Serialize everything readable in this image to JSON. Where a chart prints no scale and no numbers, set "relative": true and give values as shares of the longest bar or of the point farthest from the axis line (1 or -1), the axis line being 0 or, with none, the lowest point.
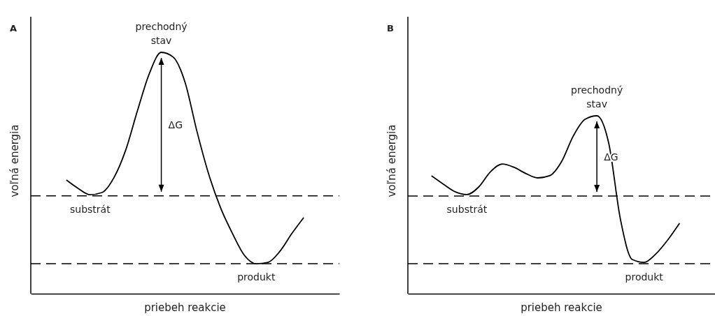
{
  "chart_data": [
    {
      "type": "line",
      "title": "A",
      "xlabel": "priebeh reakcie",
      "ylabel": "voľná energia",
      "relative": true,
      "categories": [
        null,
        null,
        null,
        null,
        null,
        null,
        null,
        null,
        null,
        null,
        null,
        null,
        null,
        null,
        null,
        null,
        null,
        null,
        null,
        null,
        null,
        null,
        null,
        null,
        null,
        null,
        null
      ],
      "series": [
        {
          "color": "#000000",
          "values": [
            null,
            null,
            null,
            0.471,
            0.436,
            0.41,
            0.419,
            0.48,
            0.595,
            0.76,
            0.913,
            1,
            0.98,
            0.876,
            0.673,
            0.494,
            0.355,
            0.249,
            0.159,
            0.124,
            0.13,
            0.176,
            0.249,
            0.315,
            null,
            null,
            null
          ]
        }
      ],
      "ref_lines": [
        {
          "axis": "y",
          "value": 0.405,
          "label": "substrát",
          "color": "#000000",
          "line_style": "dashed"
        },
        {
          "axis": "y",
          "value": 0.124,
          "label": "produkt",
          "color": "#000000",
          "line_style": "dashed"
        }
      ],
      "annotations": [
        {
          "text": "prechodný stav",
          "y": 1
        },
        "ΔG"
      ]
    },
    {
      "type": "line",
      "title": "B",
      "xlabel": "priebeh reakcie",
      "ylabel": "voľná energia",
      "relative": true,
      "categories": [
        null,
        null,
        null,
        null,
        null,
        null,
        null,
        null,
        null,
        null,
        null,
        null,
        null,
        null,
        null,
        null,
        null,
        null,
        null,
        null,
        null,
        null,
        null,
        null,
        null,
        null,
        null
      ],
      "series": [
        {
          "color": "#000000",
          "values": [
            null,
            null,
            0.663,
            0.616,
            0.573,
            0.557,
            0.6,
            0.686,
            0.729,
            0.71,
            0.675,
            0.651,
            0.663,
            0.741,
            0.886,
            0.98,
            1,
            0.847,
            0.416,
            0.192,
            0.176,
            0.224,
            0.302,
            0.396,
            null,
            null,
            null
          ]
        }
      ],
      "ref_lines": [
        {
          "axis": "y",
          "value": 0.549,
          "label": "substrát",
          "color": "#000000",
          "line_style": "dashed"
        },
        {
          "axis": "y",
          "value": 0.169,
          "label": "produkt",
          "color": "#000000",
          "line_style": "dashed"
        }
      ],
      "annotations": [
        {
          "text": "prechodný stav",
          "y": 1
        },
        "ΔG"
      ]
    }
  ]
}
